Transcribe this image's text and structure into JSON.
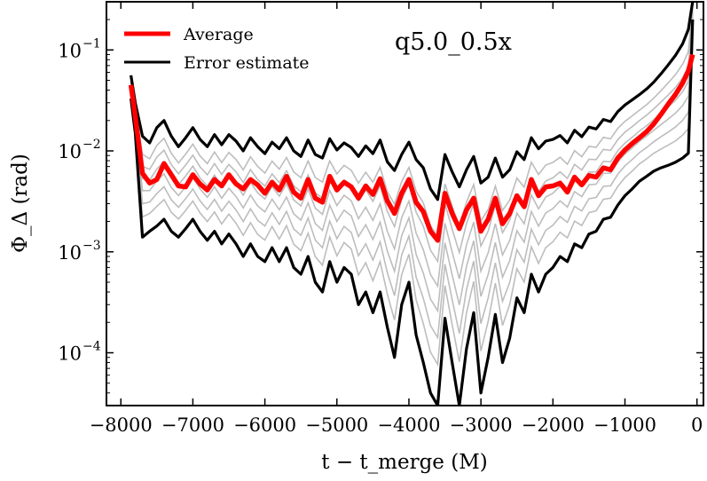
{
  "chart_data": {
    "type": "line",
    "title": "",
    "annotation": "q5.0_0.5x",
    "xlabel": "t − t_merge (M)",
    "ylabel": "Φ_Δ (rad)",
    "xscale": "linear",
    "yscale": "log",
    "xlim": [
      -8200,
      90
    ],
    "ylim": [
      3e-05,
      0.3
    ],
    "x_ticks": [
      {
        "value": -8000,
        "label": "−8000"
      },
      {
        "value": -7000,
        "label": "−7000"
      },
      {
        "value": -6000,
        "label": "−6000"
      },
      {
        "value": -5000,
        "label": "−5000"
      },
      {
        "value": -4000,
        "label": "−4000"
      },
      {
        "value": -3000,
        "label": "−3000"
      },
      {
        "value": -2000,
        "label": "−2000"
      },
      {
        "value": -1000,
        "label": "−1000"
      },
      {
        "value": 0,
        "label": "0"
      }
    ],
    "y_ticks": [
      {
        "value": 0.0001,
        "base": "10",
        "exp": "−4"
      },
      {
        "value": 0.001,
        "base": "10",
        "exp": "−3"
      },
      {
        "value": 0.01,
        "base": "10",
        "exp": "−2"
      },
      {
        "value": 0.1,
        "base": "10",
        "exp": "−1"
      }
    ],
    "legend": {
      "position": "top-left",
      "entries": [
        {
          "label": "Average",
          "color": "#ff0000"
        },
        {
          "label": "Error estimate",
          "color": "#000000"
        }
      ]
    },
    "series": [
      {
        "name": "Average",
        "color": "#ff0000",
        "x": [
          -7860,
          -7800,
          -7700,
          -7600,
          -7500,
          -7400,
          -7300,
          -7200,
          -7100,
          -7000,
          -6900,
          -6800,
          -6700,
          -6600,
          -6500,
          -6400,
          -6300,
          -6200,
          -6100,
          -6000,
          -5900,
          -5800,
          -5700,
          -5600,
          -5500,
          -5400,
          -5300,
          -5200,
          -5100,
          -5000,
          -4900,
          -4800,
          -4700,
          -4600,
          -4500,
          -4400,
          -4300,
          -4200,
          -4100,
          -4000,
          -3900,
          -3800,
          -3700,
          -3600,
          -3500,
          -3400,
          -3300,
          -3200,
          -3100,
          -3000,
          -2900,
          -2800,
          -2700,
          -2600,
          -2500,
          -2400,
          -2300,
          -2200,
          -2100,
          -2000,
          -1900,
          -1800,
          -1700,
          -1600,
          -1500,
          -1400,
          -1300,
          -1200,
          -1100,
          -1000,
          -900,
          -800,
          -700,
          -600,
          -500,
          -400,
          -300,
          -200,
          -120,
          -60
        ],
        "values": [
          0.045,
          0.022,
          0.006,
          0.0048,
          0.0052,
          0.0075,
          0.0058,
          0.0045,
          0.0044,
          0.0058,
          0.0047,
          0.0041,
          0.0052,
          0.0045,
          0.0058,
          0.0047,
          0.0042,
          0.0052,
          0.0046,
          0.0038,
          0.0049,
          0.0041,
          0.0056,
          0.0039,
          0.0034,
          0.0052,
          0.0034,
          0.0031,
          0.0056,
          0.0041,
          0.0049,
          0.0044,
          0.0034,
          0.0045,
          0.0037,
          0.0053,
          0.0032,
          0.0024,
          0.0038,
          0.0052,
          0.0031,
          0.0025,
          0.0016,
          0.0013,
          0.0038,
          0.0024,
          0.0017,
          0.0026,
          0.0034,
          0.0016,
          0.0021,
          0.0034,
          0.0019,
          0.0024,
          0.0036,
          0.0028,
          0.0052,
          0.0036,
          0.0044,
          0.0045,
          0.0048,
          0.0039,
          0.0055,
          0.0046,
          0.0057,
          0.0055,
          0.0068,
          0.0065,
          0.0085,
          0.0102,
          0.0118,
          0.0135,
          0.0155,
          0.0185,
          0.023,
          0.029,
          0.036,
          0.047,
          0.062,
          0.09
        ]
      },
      {
        "name": "Error estimate (upper)",
        "color": "#000000",
        "x": [
          -7860,
          -7800,
          -7700,
          -7600,
          -7500,
          -7400,
          -7300,
          -7200,
          -7100,
          -7000,
          -6900,
          -6800,
          -6700,
          -6600,
          -6500,
          -6400,
          -6300,
          -6200,
          -6100,
          -6000,
          -5900,
          -5800,
          -5700,
          -5600,
          -5500,
          -5400,
          -5300,
          -5200,
          -5100,
          -5000,
          -4900,
          -4800,
          -4700,
          -4600,
          -4500,
          -4400,
          -4300,
          -4200,
          -4100,
          -4000,
          -3900,
          -3800,
          -3700,
          -3600,
          -3500,
          -3400,
          -3300,
          -3200,
          -3100,
          -3000,
          -2900,
          -2800,
          -2700,
          -2600,
          -2500,
          -2400,
          -2300,
          -2200,
          -2100,
          -2000,
          -1900,
          -1800,
          -1700,
          -1600,
          -1500,
          -1400,
          -1300,
          -1200,
          -1100,
          -1000,
          -900,
          -800,
          -700,
          -600,
          -500,
          -400,
          -300,
          -200,
          -120,
          -60
        ],
        "values": [
          0.056,
          0.03,
          0.014,
          0.012,
          0.017,
          0.02,
          0.014,
          0.011,
          0.0135,
          0.017,
          0.013,
          0.011,
          0.0145,
          0.0115,
          0.0145,
          0.0125,
          0.01,
          0.0135,
          0.011,
          0.0094,
          0.0122,
          0.0105,
          0.0135,
          0.01,
          0.0088,
          0.0128,
          0.0092,
          0.0085,
          0.0132,
          0.0102,
          0.012,
          0.0108,
          0.0088,
          0.0112,
          0.0094,
          0.0128,
          0.0078,
          0.0064,
          0.0092,
          0.0122,
          0.0082,
          0.0068,
          0.0042,
          0.0033,
          0.0092,
          0.0062,
          0.0044,
          0.0065,
          0.0088,
          0.0048,
          0.0055,
          0.0085,
          0.0055,
          0.0065,
          0.0098,
          0.0082,
          0.0135,
          0.0105,
          0.0125,
          0.013,
          0.0142,
          0.012,
          0.016,
          0.0138,
          0.0172,
          0.0165,
          0.0205,
          0.0195,
          0.0245,
          0.0285,
          0.032,
          0.036,
          0.041,
          0.048,
          0.058,
          0.071,
          0.088,
          0.115,
          0.16,
          0.3
        ]
      },
      {
        "name": "Error estimate (lower)",
        "color": "#000000",
        "x": [
          -7860,
          -7800,
          -7700,
          -7600,
          -7500,
          -7400,
          -7300,
          -7200,
          -7100,
          -7000,
          -6900,
          -6800,
          -6700,
          -6600,
          -6500,
          -6400,
          -6300,
          -6200,
          -6100,
          -6000,
          -5900,
          -5800,
          -5700,
          -5600,
          -5500,
          -5400,
          -5300,
          -5200,
          -5100,
          -5000,
          -4900,
          -4800,
          -4700,
          -4600,
          -4500,
          -4400,
          -4300,
          -4200,
          -4100,
          -4000,
          -3900,
          -3800,
          -3700,
          -3600,
          -3500,
          -3400,
          -3300,
          -3200,
          -3100,
          -3000,
          -2900,
          -2800,
          -2700,
          -2600,
          -2500,
          -2400,
          -2300,
          -2200,
          -2100,
          -2000,
          -1900,
          -1800,
          -1700,
          -1600,
          -1500,
          -1400,
          -1300,
          -1200,
          -1100,
          -1000,
          -900,
          -800,
          -700,
          -600,
          -500,
          -400,
          -300,
          -200,
          -120,
          -60
        ],
        "values": [
          0.033,
          0.015,
          0.0014,
          0.0016,
          0.0018,
          0.0021,
          0.0016,
          0.0014,
          0.0017,
          0.0021,
          0.0016,
          0.0013,
          0.0016,
          0.0012,
          0.0015,
          0.0012,
          0.0009,
          0.0012,
          0.0009,
          0.0008,
          0.0011,
          0.0008,
          0.0011,
          0.0007,
          0.0006,
          0.0009,
          0.0005,
          0.0004,
          0.0008,
          0.0005,
          0.0007,
          0.0006,
          0.0003,
          0.0004,
          0.00025,
          0.0004,
          0.00018,
          9e-05,
          0.0003,
          0.0005,
          0.00015,
          8e-05,
          4e-05,
          3e-05,
          0.00022,
          8e-05,
          3e-05,
          0.00011,
          0.00025,
          4e-05,
          9e-05,
          0.00024,
          8e-05,
          0.00014,
          0.00035,
          0.00025,
          0.0006,
          0.0004,
          0.0006,
          0.0007,
          0.0009,
          0.0008,
          0.0012,
          0.0011,
          0.0015,
          0.0016,
          0.0021,
          0.0022,
          0.0029,
          0.0036,
          0.0042,
          0.005,
          0.0056,
          0.0063,
          0.0068,
          0.0072,
          0.0077,
          0.0085,
          0.0095,
          0.2
        ]
      }
    ],
    "colors": {
      "average": "#ff0000",
      "error": "#000000",
      "runs": "#bdbdbd",
      "frame": "#000000"
    }
  }
}
